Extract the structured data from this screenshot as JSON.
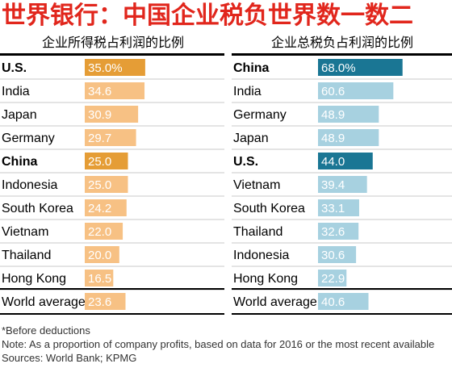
{
  "title": "世界银行：中国企业税负世界数一数二",
  "chart_data": [
    {
      "type": "bar",
      "subtitle": "企业所得税占利润的比例",
      "categories": [
        "U.S.",
        "India",
        "Japan",
        "Germany",
        "China",
        "Indonesia",
        "South Korea",
        "Vietnam",
        "Thailand",
        "Hong Kong",
        "World average"
      ],
      "value_labels": [
        "35.0%",
        "34.6",
        "30.9",
        "29.7",
        "25.0",
        "25.0",
        "24.2",
        "22.0",
        "20.0",
        "16.5",
        "23.6"
      ],
      "values": [
        35.0,
        34.6,
        30.9,
        29.7,
        25.0,
        25.0,
        24.2,
        22.0,
        20.0,
        16.5,
        23.6
      ],
      "highlighted": [
        "U.S.",
        "China"
      ],
      "bar_color": "#f7c184",
      "highlight_color": "#e59d36"
    },
    {
      "type": "bar",
      "subtitle": "企业总税负占利润的比例",
      "categories": [
        "China",
        "India",
        "Germany",
        "Japan",
        "U.S.",
        "Vietnam",
        "South Korea",
        "Thailand",
        "Indonesia",
        "Hong Kong",
        "World average"
      ],
      "value_labels": [
        "68.0%",
        "60.6",
        "48.9",
        "48.9",
        "44.0",
        "39.4",
        "33.1",
        "32.6",
        "30.6",
        "22.9",
        "40.6"
      ],
      "values": [
        68.0,
        60.6,
        48.9,
        48.9,
        44.0,
        39.4,
        33.1,
        32.6,
        30.6,
        22.9,
        40.6
      ],
      "highlighted": [
        "China",
        "U.S."
      ],
      "bar_color": "#a7d1e0",
      "highlight_color": "#1a7694"
    }
  ],
  "footnotes": {
    "before": "*Before deductions",
    "note": "Note: As a proportion of company profits, based on data for 2016 or the most recent available",
    "sources": "Sources: World Bank; KPMG"
  }
}
